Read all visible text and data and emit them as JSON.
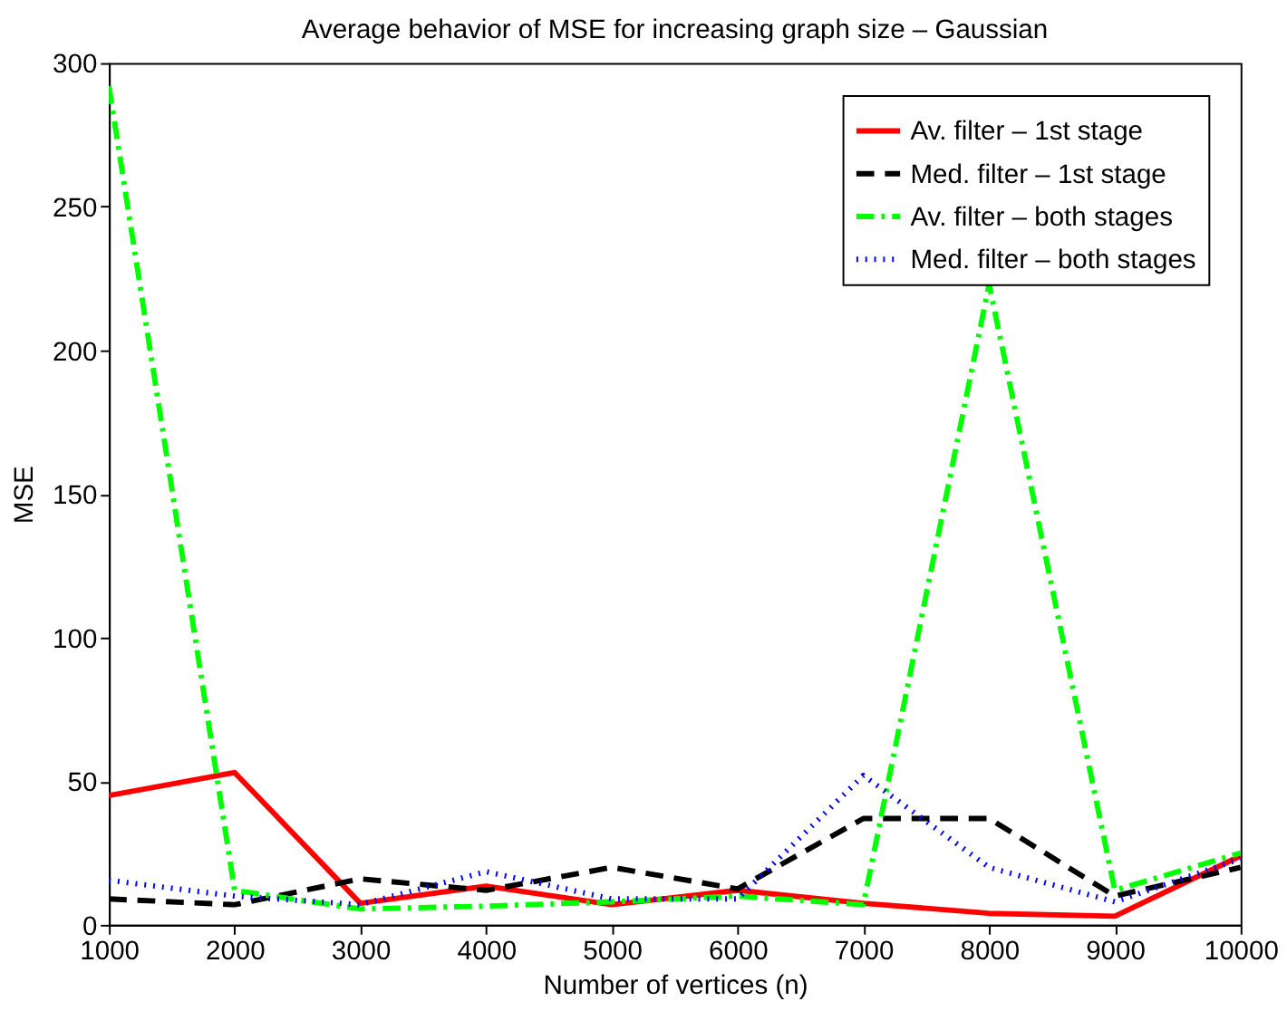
{
  "chart_data": {
    "type": "line",
    "title": "Average behavior of MSE for increasing graph size – Gaussian",
    "xlabel": "Number of vertices (n)",
    "ylabel": "MSE",
    "x": [
      1000,
      2000,
      3000,
      4000,
      5000,
      6000,
      7000,
      8000,
      9000,
      10000
    ],
    "series": [
      {
        "name": "Av. filter – 1st stage",
        "color": "#ff0000",
        "line_style": "solid",
        "values": [
          45,
          53,
          7.5,
          13.5,
          7,
          12,
          7.5,
          4,
          3,
          24
        ]
      },
      {
        "name": "Med. filter – 1st stage",
        "color": "#000000",
        "line_style": "dashed",
        "values": [
          9,
          7,
          16,
          12,
          20,
          12.5,
          37,
          37,
          10,
          20
        ]
      },
      {
        "name": "Av. filter – both stages",
        "color": "#00ff00",
        "line_style": "dashdot",
        "values": [
          292,
          12,
          5.5,
          6.5,
          8,
          10,
          7,
          223,
          12,
          25
        ]
      },
      {
        "name": "Med. filter – both stages",
        "color": "#0000ff",
        "line_style": "dotted",
        "values": [
          15.5,
          10,
          7,
          18.5,
          9,
          9,
          52,
          20,
          8,
          23
        ]
      }
    ],
    "xlim": [
      1000,
      10000
    ],
    "xticks": [
      1000,
      2000,
      3000,
      4000,
      5000,
      6000,
      7000,
      8000,
      9000,
      10000
    ],
    "ylim": [
      0,
      300
    ],
    "yticks": [
      0,
      50,
      100,
      150,
      200,
      250,
      300
    ],
    "grid": false,
    "legend": "top right"
  }
}
